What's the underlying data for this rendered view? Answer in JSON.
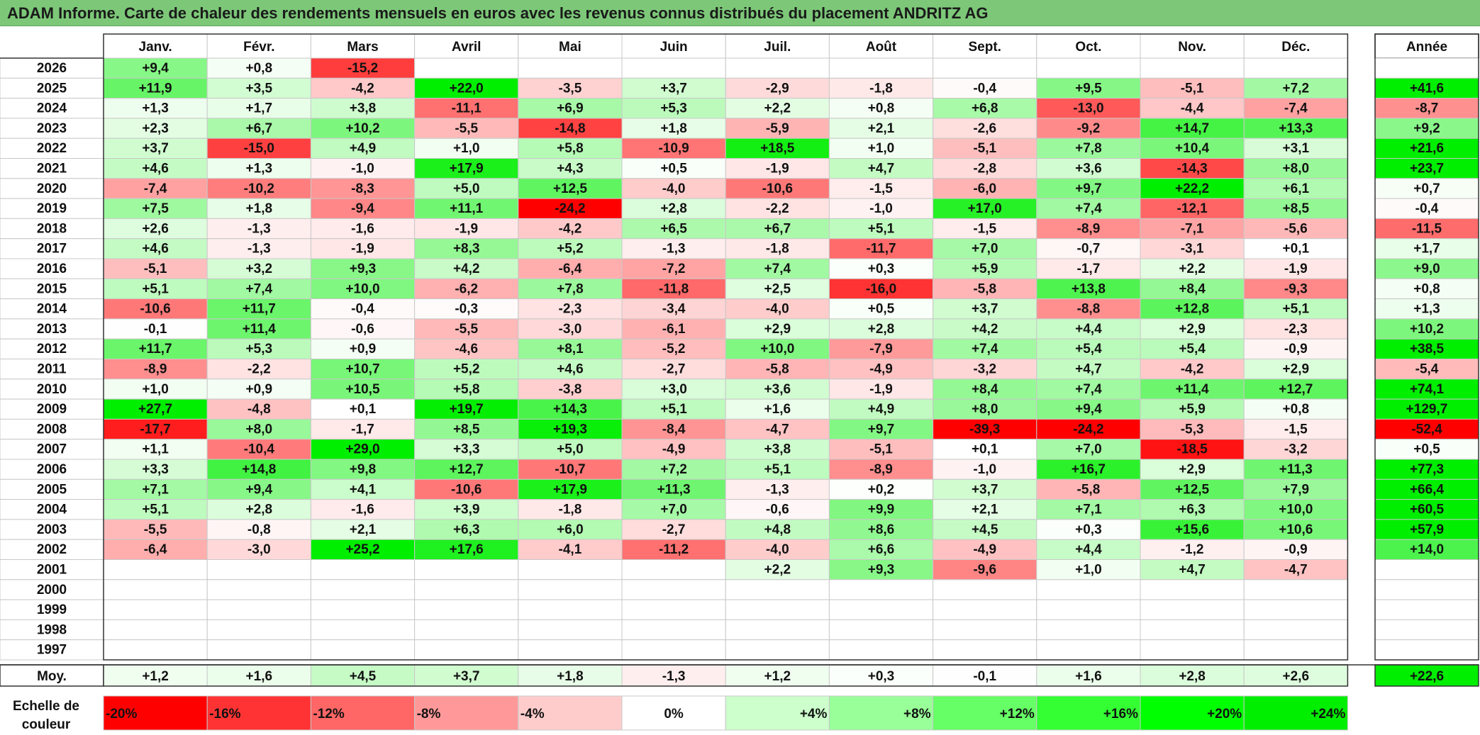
{
  "title": "ADAM Informe. Carte de chaleur des rendements mensuels en euros avec les revenus connus distribués du placement ANDRITZ AG",
  "chart_data": {
    "type": "heatmap",
    "month_headers": [
      "Janv.",
      "Févr.",
      "Mars",
      "Avril",
      "Mai",
      "Juin",
      "Juil.",
      "Août",
      "Sept.",
      "Oct.",
      "Nov.",
      "Déc."
    ],
    "year_header": "Année",
    "rows": [
      {
        "year": "2026",
        "months": [
          "+9,4",
          "+0,8",
          "-15,2",
          "",
          "",
          "",
          "",
          "",
          "",
          "",
          "",
          ""
        ],
        "annual": ""
      },
      {
        "year": "2025",
        "months": [
          "+11,9",
          "+3,5",
          "-4,2",
          "+22,0",
          "-3,5",
          "+3,7",
          "-2,9",
          "-1,8",
          "-0,4",
          "+9,5",
          "-5,1",
          "+7,2"
        ],
        "annual": "+41,6"
      },
      {
        "year": "2024",
        "months": [
          "+1,3",
          "+1,7",
          "+3,8",
          "-11,1",
          "+6,9",
          "+5,3",
          "+2,2",
          "+0,8",
          "+6,8",
          "-13,0",
          "-4,4",
          "-7,4"
        ],
        "annual": "-8,7"
      },
      {
        "year": "2023",
        "months": [
          "+2,3",
          "+6,7",
          "+10,2",
          "-5,5",
          "-14,8",
          "+1,8",
          "-5,9",
          "+2,1",
          "-2,6",
          "-9,2",
          "+14,7",
          "+13,3"
        ],
        "annual": "+9,2"
      },
      {
        "year": "2022",
        "months": [
          "+3,7",
          "-15,0",
          "+4,9",
          "+1,0",
          "+5,8",
          "-10,9",
          "+18,5",
          "+1,0",
          "-5,1",
          "+7,8",
          "+10,4",
          "+3,1"
        ],
        "annual": "+21,6"
      },
      {
        "year": "2021",
        "months": [
          "+4,6",
          "+1,3",
          "-1,0",
          "+17,9",
          "+4,3",
          "+0,5",
          "-1,9",
          "+4,7",
          "-2,8",
          "+3,6",
          "-14,3",
          "+8,0"
        ],
        "annual": "+23,7"
      },
      {
        "year": "2020",
        "months": [
          "-7,4",
          "-10,2",
          "-8,3",
          "+5,0",
          "+12,5",
          "-4,0",
          "-10,6",
          "-1,5",
          "-6,0",
          "+9,7",
          "+22,2",
          "+6,1"
        ],
        "annual": "+0,7"
      },
      {
        "year": "2019",
        "months": [
          "+7,5",
          "+1,8",
          "-9,4",
          "+11,1",
          "-24,2",
          "+2,8",
          "-2,2",
          "-1,0",
          "+17,0",
          "+7,4",
          "-12,1",
          "+8,5"
        ],
        "annual": "-0,4"
      },
      {
        "year": "2018",
        "months": [
          "+2,6",
          "-1,3",
          "-1,6",
          "-1,9",
          "-4,2",
          "+6,5",
          "+6,7",
          "+5,1",
          "-1,5",
          "-8,9",
          "-7,1",
          "-5,6"
        ],
        "annual": "-11,5"
      },
      {
        "year": "2017",
        "months": [
          "+4,6",
          "-1,3",
          "-1,9",
          "+8,3",
          "+5,2",
          "-1,3",
          "-1,8",
          "-11,7",
          "+7,0",
          "-0,7",
          "-3,1",
          "+0,1"
        ],
        "annual": "+1,7"
      },
      {
        "year": "2016",
        "months": [
          "-5,1",
          "+3,2",
          "+9,3",
          "+4,2",
          "-6,4",
          "-7,2",
          "+7,4",
          "+0,3",
          "+5,9",
          "-1,7",
          "+2,2",
          "-1,9"
        ],
        "annual": "+9,0"
      },
      {
        "year": "2015",
        "months": [
          "+5,1",
          "+7,4",
          "+10,0",
          "-6,2",
          "+7,8",
          "-11,8",
          "+2,5",
          "-16,0",
          "-5,8",
          "+13,8",
          "+8,4",
          "-9,3"
        ],
        "annual": "+0,8"
      },
      {
        "year": "2014",
        "months": [
          "-10,6",
          "+11,7",
          "-0,4",
          "-0,3",
          "-2,3",
          "-3,4",
          "-4,0",
          "+0,5",
          "+3,7",
          "-8,8",
          "+12,8",
          "+5,1"
        ],
        "annual": "+1,3"
      },
      {
        "year": "2013",
        "months": [
          "-0,1",
          "+11,4",
          "-0,6",
          "-5,5",
          "-3,0",
          "-6,1",
          "+2,9",
          "+2,8",
          "+4,2",
          "+4,4",
          "+2,9",
          "-2,3"
        ],
        "annual": "+10,2"
      },
      {
        "year": "2012",
        "months": [
          "+11,7",
          "+5,3",
          "+0,9",
          "-4,6",
          "+8,1",
          "-5,2",
          "+10,0",
          "-7,9",
          "+7,4",
          "+5,4",
          "+5,4",
          "-0,9"
        ],
        "annual": "+38,5"
      },
      {
        "year": "2011",
        "months": [
          "-8,9",
          "-2,2",
          "+10,7",
          "+5,2",
          "+4,6",
          "-2,7",
          "-5,8",
          "-4,9",
          "-3,2",
          "+4,7",
          "-4,2",
          "+2,9"
        ],
        "annual": "-5,4"
      },
      {
        "year": "2010",
        "months": [
          "+1,0",
          "+0,9",
          "+10,5",
          "+5,8",
          "-3,8",
          "+3,0",
          "+3,6",
          "-1,9",
          "+8,4",
          "+7,4",
          "+11,4",
          "+12,7"
        ],
        "annual": "+74,1"
      },
      {
        "year": "2009",
        "months": [
          "+27,7",
          "-4,8",
          "+0,1",
          "+19,7",
          "+14,3",
          "+5,1",
          "+1,6",
          "+4,9",
          "+8,0",
          "+9,4",
          "+5,9",
          "+0,8"
        ],
        "annual": "+129,7"
      },
      {
        "year": "2008",
        "months": [
          "-17,7",
          "+8,0",
          "-1,7",
          "+8,5",
          "+19,3",
          "-8,4",
          "-4,7",
          "+9,7",
          "-39,3",
          "-24,2",
          "-5,3",
          "-1,5"
        ],
        "annual": "-52,4"
      },
      {
        "year": "2007",
        "months": [
          "+1,1",
          "-10,4",
          "+29,0",
          "+3,3",
          "+5,0",
          "-4,9",
          "+3,8",
          "-5,1",
          "+0,1",
          "+7,0",
          "-18,5",
          "-3,2"
        ],
        "annual": "+0,5"
      },
      {
        "year": "2006",
        "months": [
          "+3,3",
          "+14,8",
          "+9,8",
          "+12,7",
          "-10,7",
          "+7,2",
          "+5,1",
          "-8,9",
          "-1,0",
          "+16,7",
          "+2,9",
          "+11,3"
        ],
        "annual": "+77,3"
      },
      {
        "year": "2005",
        "months": [
          "+7,1",
          "+9,4",
          "+4,1",
          "-10,6",
          "+17,9",
          "+11,3",
          "-1,3",
          "+0,2",
          "+3,7",
          "-5,8",
          "+12,5",
          "+7,9"
        ],
        "annual": "+66,4"
      },
      {
        "year": "2004",
        "months": [
          "+5,1",
          "+2,8",
          "-1,6",
          "+3,9",
          "-1,8",
          "+7,0",
          "-0,6",
          "+9,9",
          "+2,1",
          "+7,1",
          "+6,3",
          "+10,0"
        ],
        "annual": "+60,5"
      },
      {
        "year": "2003",
        "months": [
          "-5,5",
          "-0,8",
          "+2,1",
          "+6,3",
          "+6,0",
          "-2,7",
          "+4,8",
          "+8,6",
          "+4,5",
          "+0,3",
          "+15,6",
          "+10,6"
        ],
        "annual": "+57,9"
      },
      {
        "year": "2002",
        "months": [
          "-6,4",
          "-3,0",
          "+25,2",
          "+17,6",
          "-4,1",
          "-11,2",
          "-4,0",
          "+6,6",
          "-4,9",
          "+4,4",
          "-1,2",
          "-0,9"
        ],
        "annual": "+14,0"
      },
      {
        "year": "2001",
        "months": [
          "",
          "",
          "",
          "",
          "",
          "",
          "+2,2",
          "+9,3",
          "-9,6",
          "+1,0",
          "+4,7",
          "-4,7"
        ],
        "annual": ""
      },
      {
        "year": "2000",
        "months": [
          "",
          "",
          "",
          "",
          "",
          "",
          "",
          "",
          "",
          "",
          "",
          ""
        ],
        "annual": ""
      },
      {
        "year": "1999",
        "months": [
          "",
          "",
          "",
          "",
          "",
          "",
          "",
          "",
          "",
          "",
          "",
          ""
        ],
        "annual": ""
      },
      {
        "year": "1998",
        "months": [
          "",
          "",
          "",
          "",
          "",
          "",
          "",
          "",
          "",
          "",
          "",
          ""
        ],
        "annual": ""
      },
      {
        "year": "1997",
        "months": [
          "",
          "",
          "",
          "",
          "",
          "",
          "",
          "",
          "",
          "",
          "",
          ""
        ],
        "annual": ""
      }
    ],
    "average": {
      "label": "Moy.",
      "months": [
        "+1,2",
        "+1,6",
        "+4,5",
        "+3,7",
        "+1,8",
        "-1,3",
        "+1,2",
        "+0,3",
        "-0,1",
        "+1,6",
        "+2,8",
        "+2,6"
      ],
      "annual": "+22,6"
    },
    "color_scale": {
      "label_line1": "Echelle de",
      "label_line2": "couleur",
      "items": [
        {
          "label": "-20%",
          "value": -20,
          "color": "#ff0000"
        },
        {
          "label": "-16%",
          "value": -16,
          "color": "#ff3333"
        },
        {
          "label": "-12%",
          "value": -12,
          "color": "#ff6666"
        },
        {
          "label": "-8%",
          "value": -8,
          "color": "#ff9999"
        },
        {
          "label": "-4%",
          "value": -4,
          "color": "#ffcccc"
        },
        {
          "label": "0%",
          "value": 0,
          "color": "#ffffff"
        },
        {
          "label": "+4%",
          "value": 4,
          "color": "#ccffcc"
        },
        {
          "label": "+8%",
          "value": 8,
          "color": "#99ff99"
        },
        {
          "label": "+12%",
          "value": 12,
          "color": "#66ff66"
        },
        {
          "label": "+16%",
          "value": 16,
          "color": "#33ff33"
        },
        {
          "label": "+20%",
          "value": 20,
          "color": "#00ff00"
        },
        {
          "label": "+24%",
          "value": 24,
          "color": "#00ee00"
        }
      ]
    },
    "colors": {
      "title_bar": "#7cc878",
      "negative_max": "#ff0000",
      "positive_max": "#00ee00",
      "grid": "#c8c8c8"
    }
  }
}
